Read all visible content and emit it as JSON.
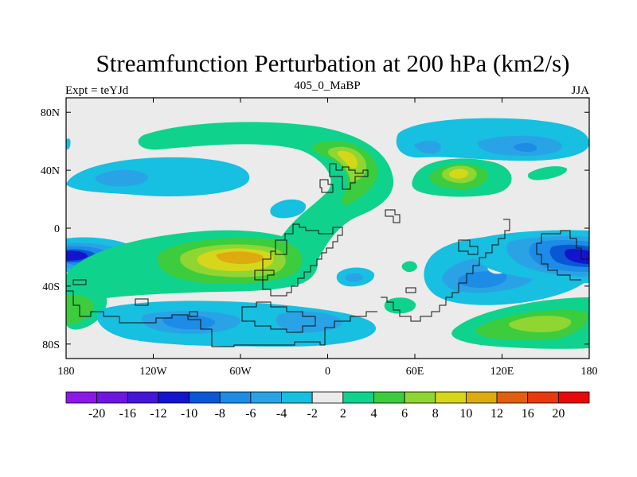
{
  "chart_data": {
    "type": "contour-map",
    "title": "Streamfunction Perturbation at 200 hPa (km2/s)",
    "left_label": "Expt = teYJd",
    "center_label": "405_0_MaBP",
    "right_label": "JJA",
    "x_ticks": [
      {
        "value": -180,
        "label": "180"
      },
      {
        "value": -120,
        "label": "120W"
      },
      {
        "value": -60,
        "label": "60W"
      },
      {
        "value": 0,
        "label": "0"
      },
      {
        "value": 60,
        "label": "60E"
      },
      {
        "value": 120,
        "label": "120E"
      },
      {
        "value": 180,
        "label": "180"
      }
    ],
    "y_ticks": [
      {
        "value": 80,
        "label": "80N"
      },
      {
        "value": 40,
        "label": "40N"
      },
      {
        "value": 0,
        "label": "0"
      },
      {
        "value": -40,
        "label": "40S"
      },
      {
        "value": -80,
        "label": "80S"
      }
    ],
    "xlim": [
      -180,
      180
    ],
    "ylim": [
      -90,
      90
    ],
    "colorbar": {
      "levels": [
        "-20",
        "-16",
        "-12",
        "-10",
        "-8",
        "-6",
        "-4",
        "-2",
        "2",
        "4",
        "6",
        "8",
        "10",
        "12",
        "16",
        "20"
      ],
      "colors": [
        "#8c17e6",
        "#6e16e0",
        "#4616d6",
        "#1414cc",
        "#0a57d4",
        "#1c8ce6",
        "#2aa3e6",
        "#17bfe0",
        "#ebebeb",
        "#0fd28c",
        "#3dcc3d",
        "#8fd632",
        "#d6d61a",
        "#ddaa10",
        "#e06010",
        "#e63a0a",
        "#e60a0a"
      ]
    },
    "features": [
      {
        "name": "nh-pacific-low-west",
        "sign": "negative",
        "center": [
          -150,
          40
        ],
        "peak": -4
      },
      {
        "name": "nh-atlantic-high",
        "sign": "positive",
        "center": [
          10,
          45
        ],
        "peak": 8
      },
      {
        "name": "nh-asia-high",
        "sign": "positive",
        "center": [
          95,
          38
        ],
        "peak": 8
      },
      {
        "name": "nh-pacific-low-east",
        "sign": "negative",
        "center": [
          135,
          55
        ],
        "peak": -6
      },
      {
        "name": "sh-south-america-high",
        "sign": "positive",
        "center": [
          -48,
          -20
        ],
        "peak": 10
      },
      {
        "name": "sh-pacific-low-west",
        "sign": "negative",
        "center": [
          -172,
          -20
        ],
        "peak": -10
      },
      {
        "name": "sh-pacific-low-east",
        "sign": "negative",
        "center": [
          172,
          -20
        ],
        "peak": -10
      },
      {
        "name": "sh-indian-low",
        "sign": "negative",
        "center": [
          100,
          -40
        ],
        "peak": -6
      },
      {
        "name": "sh-southern-low",
        "sign": "negative",
        "center": [
          -100,
          -65
        ],
        "peak": -6
      },
      {
        "name": "sh-southern-high",
        "sign": "positive",
        "center": [
          150,
          -65
        ],
        "peak": 8
      }
    ]
  }
}
